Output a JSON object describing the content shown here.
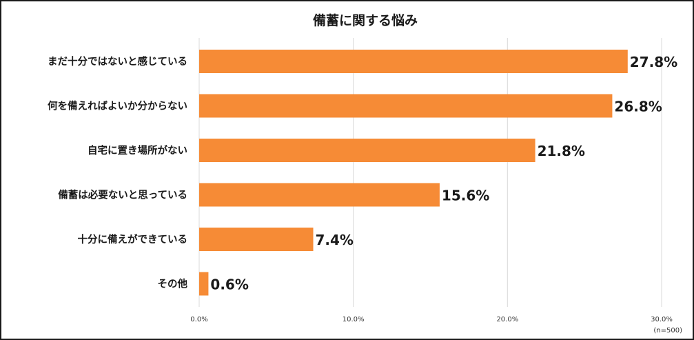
{
  "chart_data": {
    "type": "bar",
    "orientation": "horizontal",
    "title": "備蓄に関する悩み",
    "categories": [
      "まだ十分ではないと感じている",
      "何を備えればよいか分からない",
      "自宅に置き場所がない",
      "備蓄は必要ないと思っている",
      "十分に備えができている",
      "その他"
    ],
    "values": [
      27.8,
      26.8,
      21.8,
      15.6,
      7.4,
      0.6
    ],
    "value_labels": [
      "27.8%",
      "26.8%",
      "21.8%",
      "15.6%",
      "7.4%",
      "0.6%"
    ],
    "xlim": [
      0,
      30
    ],
    "x_ticks": [
      0,
      10,
      20,
      30
    ],
    "x_tick_labels": [
      "0.0%",
      "10.0%",
      "20.0%",
      "30.0%"
    ],
    "grid": true,
    "legend": "none",
    "note": "(n=500)",
    "bar_color": "#F68B36",
    "gridline_color": "#D9D9D9"
  }
}
